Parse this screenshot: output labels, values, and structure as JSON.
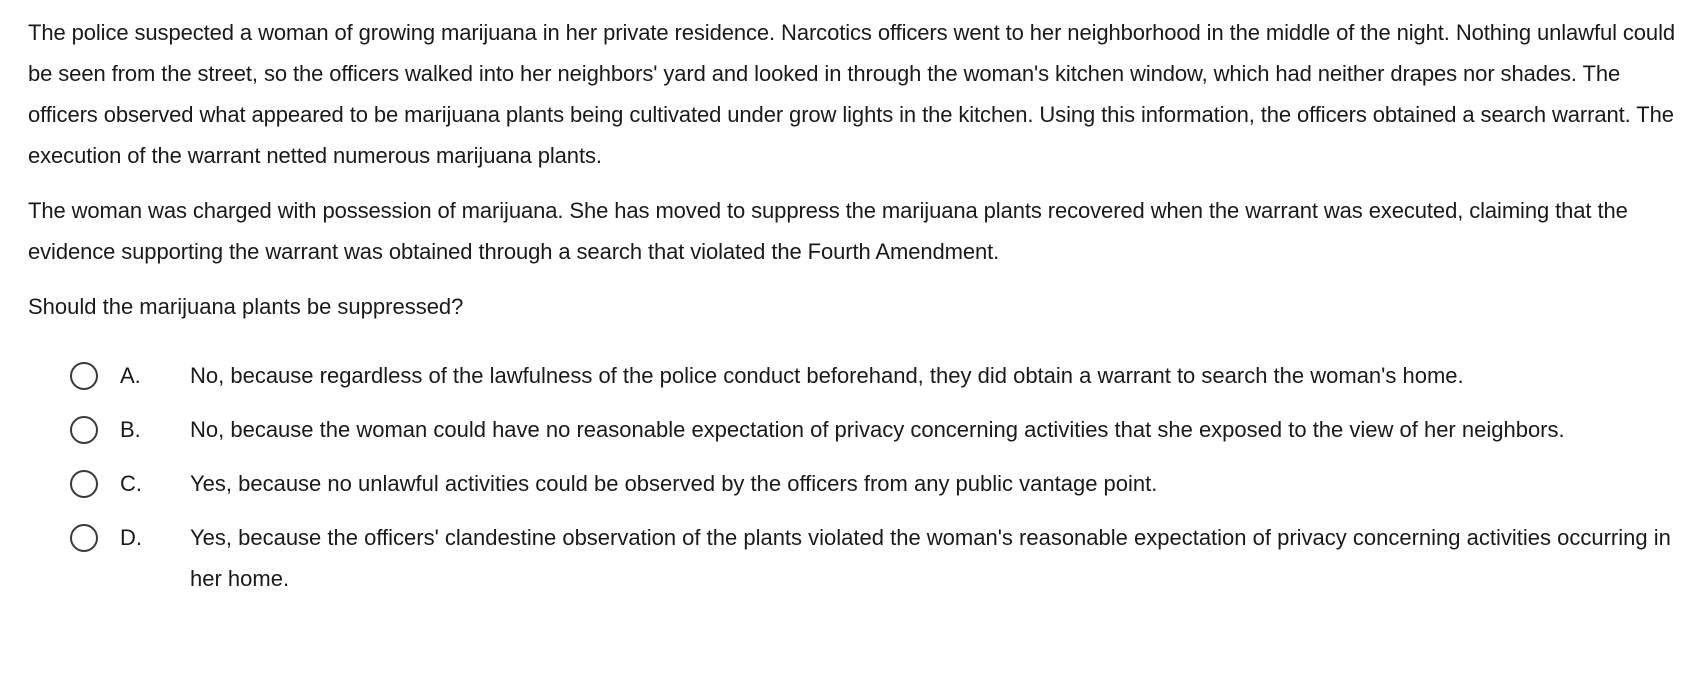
{
  "passage": [
    "The police suspected a woman of growing marijuana in her private residence.  Narcotics officers went to her neighborhood in the middle of the night.  Nothing unlawful could be seen from the street, so the officers walked into her neighbors' yard and looked in through the woman's kitchen window, which had neither drapes nor shades.  The officers observed what appeared to be marijuana plants being cultivated under grow lights in the kitchen.  Using this information, the officers obtained a search warrant.  The execution of the warrant netted numerous marijuana plants.",
    "The woman was charged with possession of marijuana.  She has moved to suppress the marijuana plants recovered when the warrant was executed, claiming that the evidence supporting the warrant was obtained through a search that violated the Fourth Amendment."
  ],
  "question": "Should the marijuana plants be suppressed?",
  "options": [
    {
      "letter": "A.",
      "text": "No, because regardless of the lawfulness of the police conduct beforehand, they did obtain a warrant to search the woman's home."
    },
    {
      "letter": "B.",
      "text": "No, because the woman could have no reasonable expectation of privacy concerning activities that she exposed to the view of her neighbors."
    },
    {
      "letter": "C.",
      "text": "Yes, because no unlawful activities could be observed by the officers from any public vantage point."
    },
    {
      "letter": "D.",
      "text": "Yes, because the officers' clandestine observation of the plants violated the woman's reasonable expectation of privacy concerning activities occurring in her home."
    }
  ]
}
